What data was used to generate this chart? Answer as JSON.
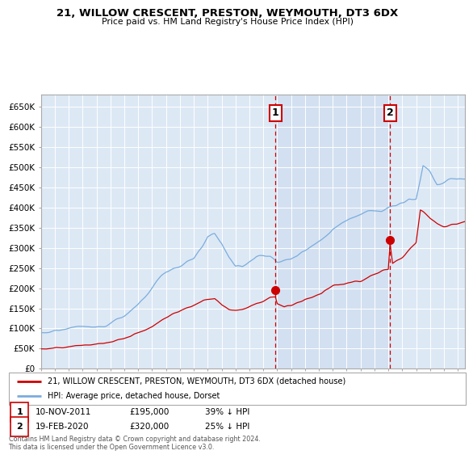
{
  "title": "21, WILLOW CRESCENT, PRESTON, WEYMOUTH, DT3 6DX",
  "subtitle": "Price paid vs. HM Land Registry's House Price Index (HPI)",
  "xlim_start": 1995.0,
  "xlim_end": 2025.5,
  "ylim_min": 0,
  "ylim_max": 680000,
  "yticks": [
    0,
    50000,
    100000,
    150000,
    200000,
    250000,
    300000,
    350000,
    400000,
    450000,
    500000,
    550000,
    600000,
    650000
  ],
  "ytick_labels": [
    "£0",
    "£50K",
    "£100K",
    "£150K",
    "£200K",
    "£250K",
    "£300K",
    "£350K",
    "£400K",
    "£450K",
    "£500K",
    "£550K",
    "£600K",
    "£650K"
  ],
  "bg_color": "#dde8f5",
  "grid_color": "#ffffff",
  "hpi_color": "#7aaddd",
  "price_color": "#cc0000",
  "sale1_x": 2011.87,
  "sale1_y": 195000,
  "sale2_x": 2020.12,
  "sale2_y": 320000,
  "vline_color": "#cc0000",
  "span_color": "#c8d8ee",
  "legend_label1": "21, WILLOW CRESCENT, PRESTON, WEYMOUTH, DT3 6DX (detached house)",
  "legend_label2": "HPI: Average price, detached house, Dorset",
  "note1_num": "1",
  "note1_date": "10-NOV-2011",
  "note1_price": "£195,000",
  "note1_pct": "39% ↓ HPI",
  "note2_num": "2",
  "note2_date": "19-FEB-2020",
  "note2_price": "£320,000",
  "note2_pct": "25% ↓ HPI",
  "footer": "Contains HM Land Registry data © Crown copyright and database right 2024.\nThis data is licensed under the Open Government Licence v3.0."
}
